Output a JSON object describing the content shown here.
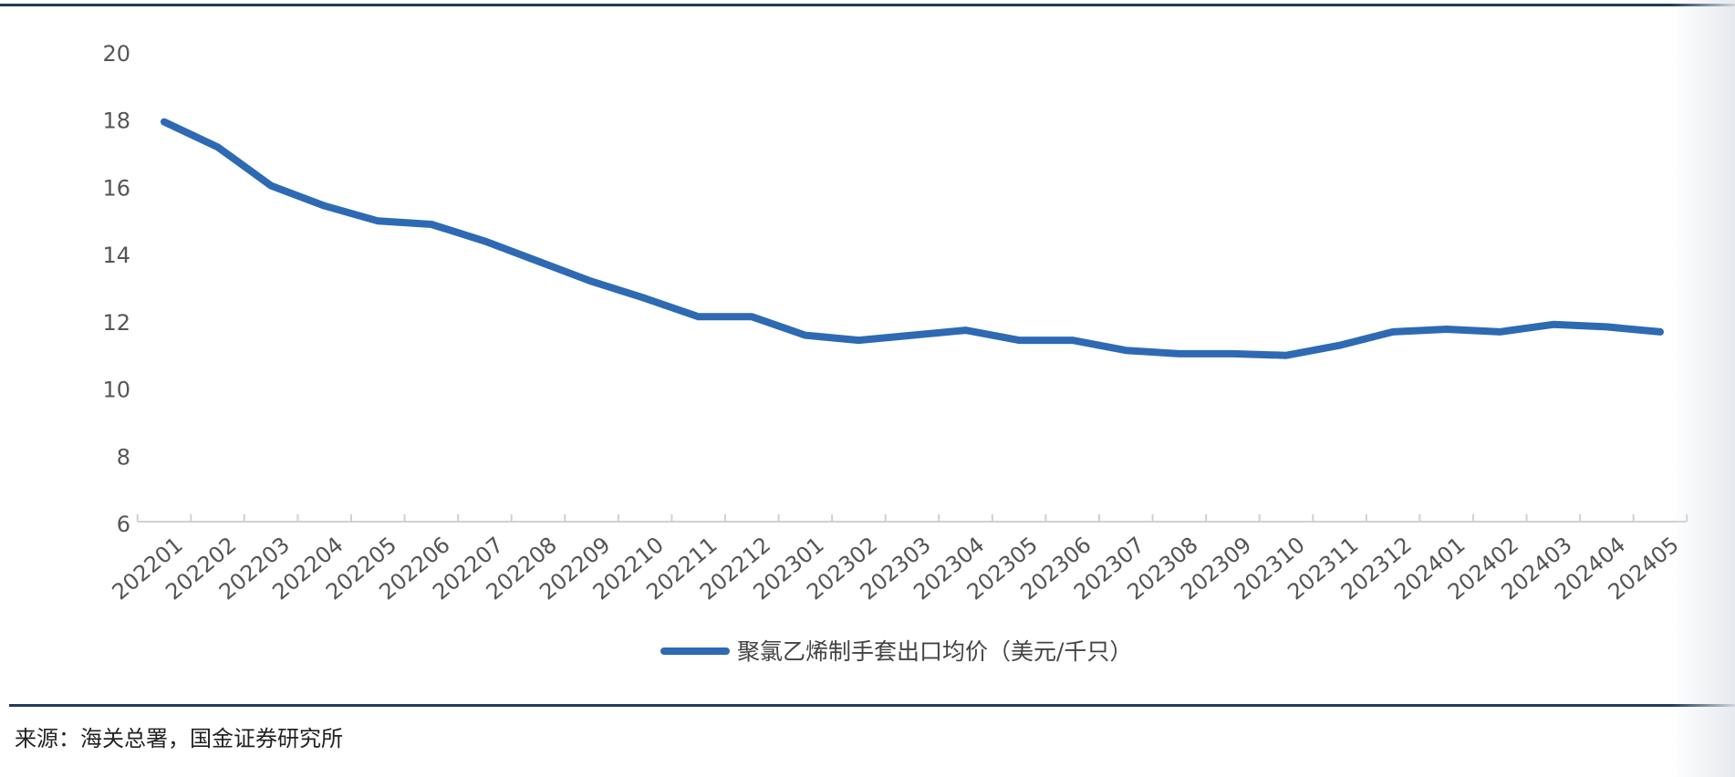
{
  "chart_data": {
    "type": "line",
    "title": "",
    "xlabel": "",
    "ylabel": "",
    "ylim": [
      6,
      20
    ],
    "yticks": [
      6,
      8,
      10,
      12,
      14,
      16,
      18,
      20
    ],
    "grid": false,
    "legend_position": "bottom-center",
    "categories": [
      "202201",
      "202202",
      "202203",
      "202204",
      "202205",
      "202206",
      "202207",
      "202208",
      "202209",
      "202210",
      "202211",
      "202212",
      "202301",
      "202302",
      "202303",
      "202304",
      "202305",
      "202306",
      "202307",
      "202308",
      "202309",
      "202310",
      "202311",
      "202312",
      "202401",
      "202402",
      "202403",
      "202404",
      "202405"
    ],
    "series": [
      {
        "name": "聚氯乙烯制手套出口均价（美元/千只）",
        "color": "#2e6ab4",
        "values": [
          17.95,
          17.2,
          16.05,
          15.45,
          15.0,
          14.9,
          14.4,
          13.8,
          13.2,
          12.7,
          12.15,
          12.15,
          11.6,
          11.45,
          11.6,
          11.75,
          11.45,
          11.45,
          11.15,
          11.05,
          11.05,
          11.0,
          11.3,
          11.7,
          11.78,
          11.7,
          11.92,
          11.85,
          11.7
        ]
      }
    ]
  },
  "footer": {
    "source": "来源：海关总署，国金证券研究所"
  }
}
